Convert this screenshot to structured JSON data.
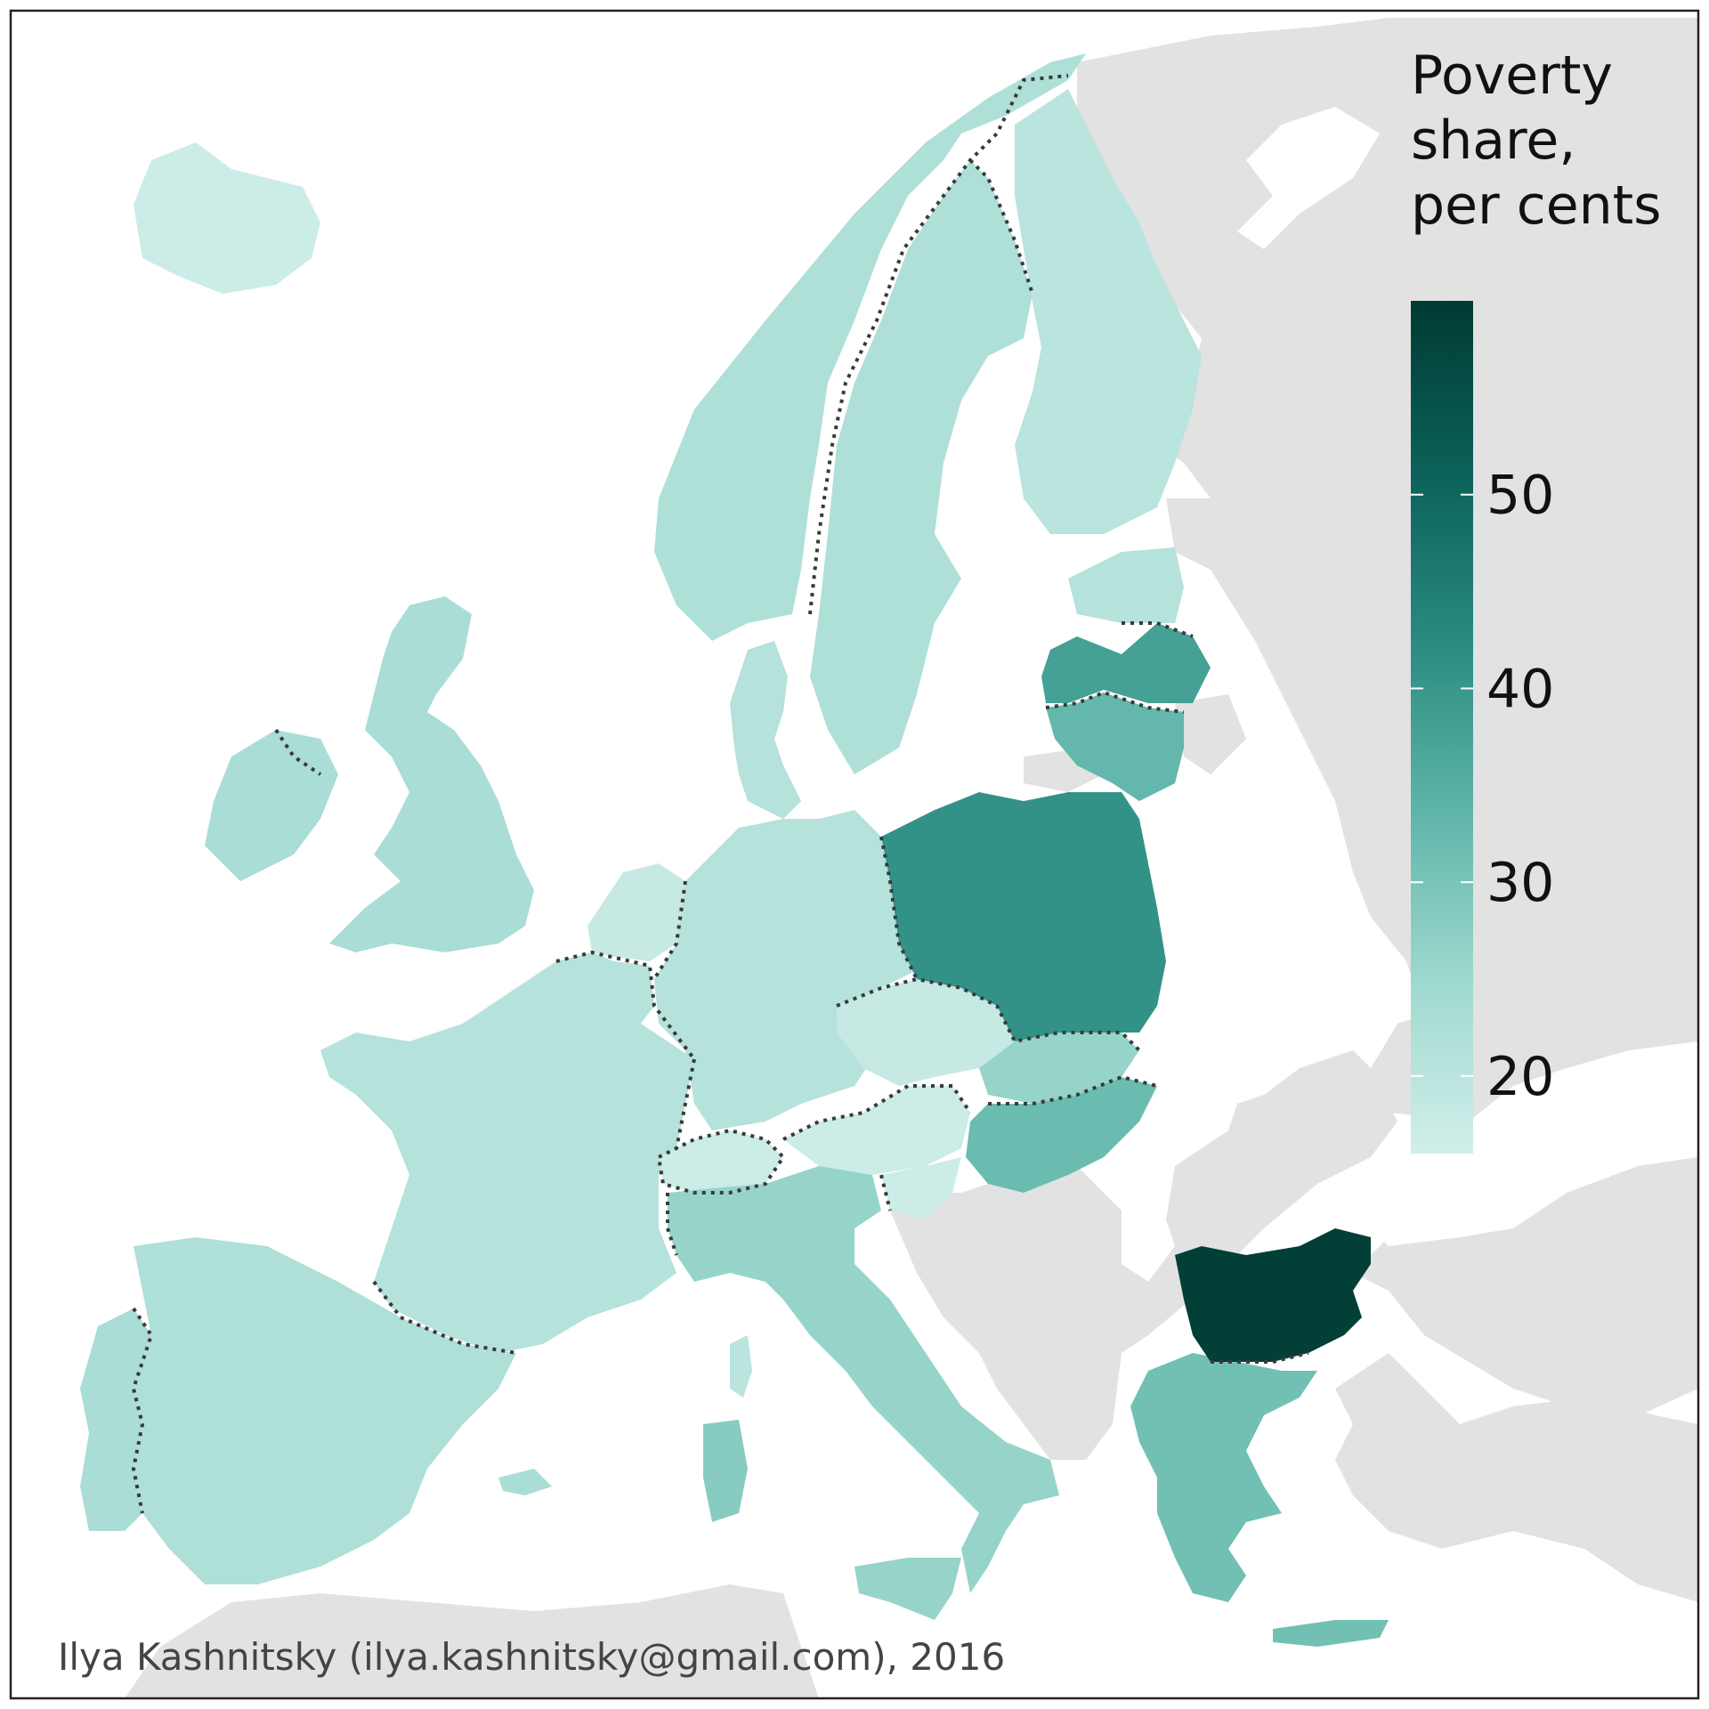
{
  "map": {
    "credit": "Ilya Kashnitsky (ilya.kashnitsky@gmail.com), 2016",
    "colors": {
      "background_land": "#e2e2e2",
      "sea": "#ffffff",
      "border_dotted": "#3a3a3a",
      "frame": "#222222"
    },
    "legend": {
      "title_lines": [
        "Poverty",
        "share,",
        "per cents"
      ],
      "range": [
        16,
        60
      ],
      "ticks": [
        20,
        30,
        40,
        50
      ],
      "gradient": [
        "#d1eeea",
        "#9fd9cf",
        "#5fb5a9",
        "#2a8b80",
        "#0b6159",
        "#003b33"
      ]
    },
    "regions": [
      {
        "id": "iceland",
        "value": 17
      },
      {
        "id": "norway",
        "value": 22
      },
      {
        "id": "sweden",
        "value": 22
      },
      {
        "id": "finland",
        "value": 20
      },
      {
        "id": "estonia",
        "value": 21
      },
      {
        "id": "latvia",
        "value": 38
      },
      {
        "id": "lithuania",
        "value": 33
      },
      {
        "id": "denmark",
        "value": 21
      },
      {
        "id": "uk",
        "value": 23
      },
      {
        "id": "ireland",
        "value": 23
      },
      {
        "id": "netherlands",
        "value": 18
      },
      {
        "id": "belgium",
        "value": 21
      },
      {
        "id": "germany",
        "value": 21
      },
      {
        "id": "france",
        "value": 21
      },
      {
        "id": "spain",
        "value": 22
      },
      {
        "id": "portugal",
        "value": 23
      },
      {
        "id": "switzerland",
        "value": 17
      },
      {
        "id": "austria",
        "value": 17
      },
      {
        "id": "czechia",
        "value": 18
      },
      {
        "id": "slovakia",
        "value": 26
      },
      {
        "id": "hungary",
        "value": 32
      },
      {
        "id": "poland",
        "value": 41
      },
      {
        "id": "slovenia",
        "value": 17
      },
      {
        "id": "italy",
        "value": 26
      },
      {
        "id": "corsica",
        "value": 20
      },
      {
        "id": "sardinia",
        "value": 28
      },
      {
        "id": "sicily",
        "value": 26
      },
      {
        "id": "balearics",
        "value": 23
      },
      {
        "id": "greece",
        "value": 31
      },
      {
        "id": "crete",
        "value": 31
      },
      {
        "id": "bulgaria",
        "value": 59
      }
    ]
  }
}
